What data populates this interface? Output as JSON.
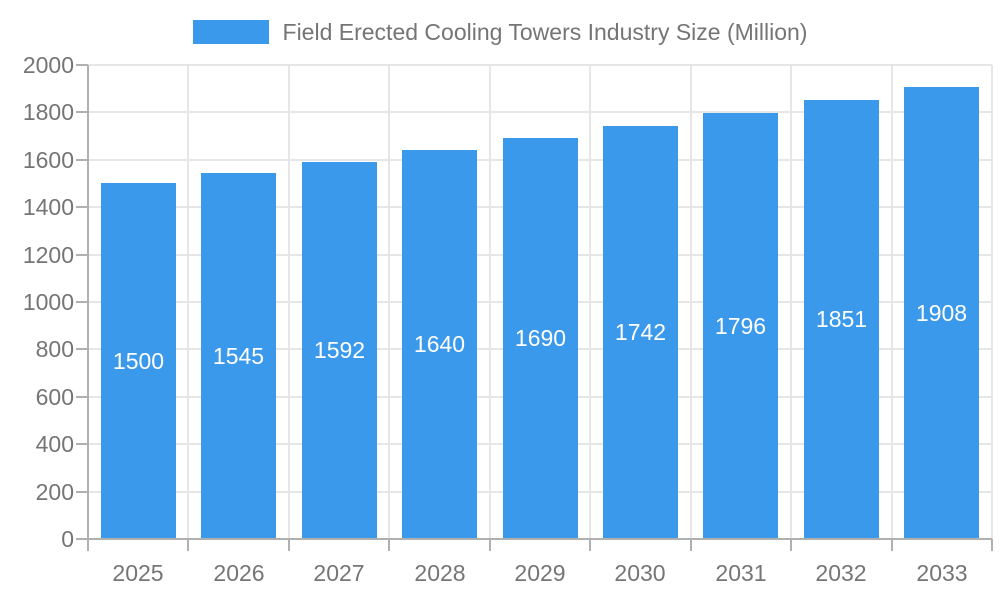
{
  "legend": {
    "label": "Field Erected Cooling Towers Industry Size (Million)"
  },
  "chart_data": {
    "type": "bar",
    "title": "Field Erected Cooling Towers Industry Size (Million)",
    "categories": [
      "2025",
      "2026",
      "2027",
      "2028",
      "2029",
      "2030",
      "2031",
      "2032",
      "2033"
    ],
    "values": [
      1500,
      1545,
      1592,
      1640,
      1690,
      1742,
      1796,
      1851,
      1908
    ],
    "xlabel": "",
    "ylabel": "",
    "ylim": [
      0,
      2000
    ],
    "ytick_step": 200,
    "grid": true,
    "legend_position": "top",
    "value_labels": "inside-center",
    "colors": {
      "bar": "#3b99ec",
      "value_label": "#ffffff",
      "axis_text": "#757575",
      "gridline": "#e6e6e6",
      "axis_line": "#b0b0b0"
    }
  }
}
